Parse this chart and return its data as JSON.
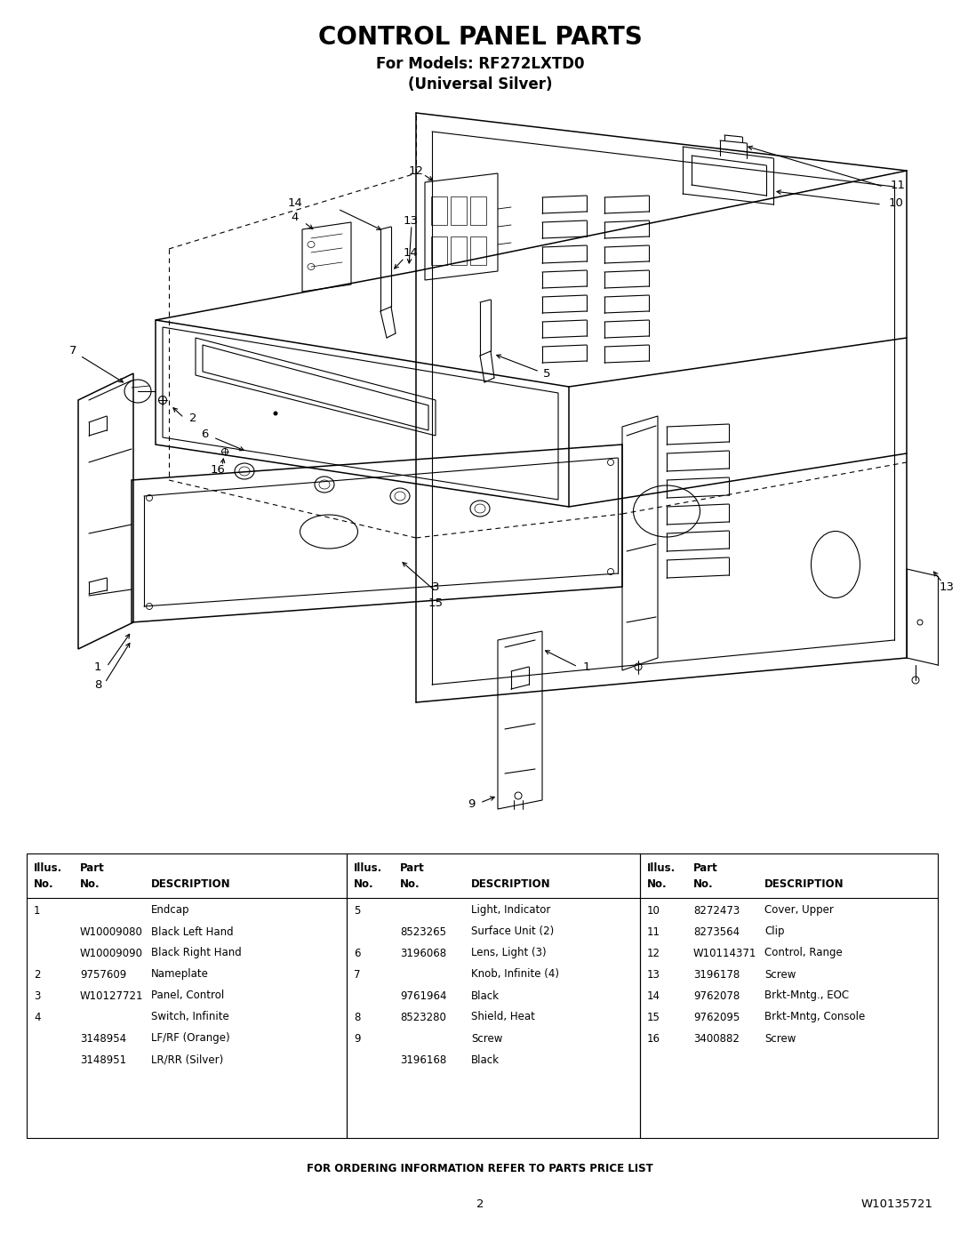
{
  "title": "CONTROL PANEL PARTS",
  "subtitle1": "For Models: RF272LXTD0",
  "subtitle2": "(Universal Silver)",
  "page_number": "2",
  "doc_number": "W10135721",
  "footer_text": "FOR ORDERING INFORMATION REFER TO PARTS PRICE LIST",
  "col1_rows": [
    [
      "1",
      "",
      "Endcap"
    ],
    [
      "",
      "W10009080",
      "Black Left Hand"
    ],
    [
      "",
      "W10009090",
      "Black Right Hand"
    ],
    [
      "2",
      "9757609",
      "Nameplate"
    ],
    [
      "3",
      "W10127721",
      "Panel, Control"
    ],
    [
      "4",
      "",
      "Switch, Infinite"
    ],
    [
      "",
      "3148954",
      "LF/RF (Orange)"
    ],
    [
      "",
      "3148951",
      "LR/RR (Silver)"
    ]
  ],
  "col2_rows": [
    [
      "5",
      "",
      "Light, Indicator"
    ],
    [
      "",
      "8523265",
      "Surface Unit (2)"
    ],
    [
      "6",
      "3196068",
      "Lens, Light (3)"
    ],
    [
      "7",
      "",
      "Knob, Infinite (4)"
    ],
    [
      "",
      "9761964",
      "Black"
    ],
    [
      "8",
      "8523280",
      "Shield, Heat"
    ],
    [
      "9",
      "",
      "Screw"
    ],
    [
      "",
      "3196168",
      "Black"
    ]
  ],
  "col3_rows": [
    [
      "10",
      "8272473",
      "Cover, Upper"
    ],
    [
      "11",
      "8273564",
      "Clip"
    ],
    [
      "12",
      "W10114371",
      "Control, Range"
    ],
    [
      "13",
      "3196178",
      "Screw"
    ],
    [
      "14",
      "9762078",
      "Brkt-Mntg., EOC"
    ],
    [
      "15",
      "9762095",
      "Brkt-Mntg, Console"
    ],
    [
      "16",
      "3400882",
      "Screw"
    ]
  ],
  "bg_color": "#ffffff",
  "text_color": "#000000"
}
